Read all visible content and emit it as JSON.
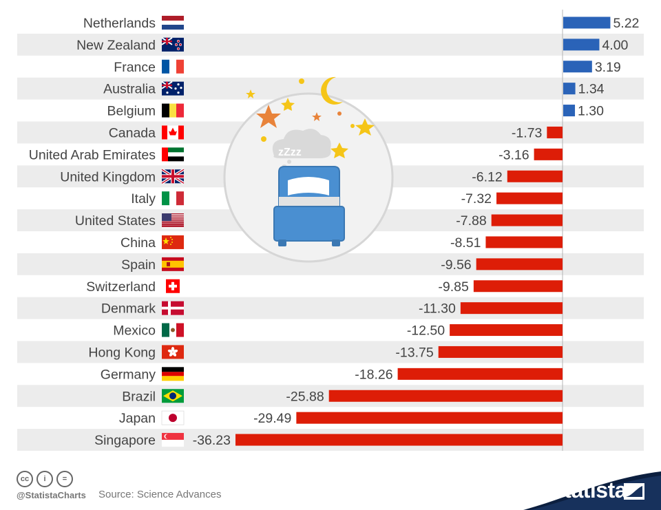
{
  "chart_data": {
    "type": "bar",
    "orientation": "horizontal",
    "title": "",
    "xlabel": "",
    "ylabel": "",
    "xlim": [
      -36.23,
      5.22
    ],
    "categories": [
      "Netherlands",
      "New Zealand",
      "France",
      "Australia",
      "Belgium",
      "Canada",
      "United Arab Emirates",
      "United Kingdom",
      "Italy",
      "United States",
      "China",
      "Spain",
      "Switzerland",
      "Denmark",
      "Mexico",
      "Hong Kong",
      "Germany",
      "Brazil",
      "Japan",
      "Singapore"
    ],
    "values": [
      5.22,
      4.0,
      3.19,
      1.34,
      1.3,
      -1.73,
      -3.16,
      -6.12,
      -7.32,
      -7.88,
      -8.51,
      -9.56,
      -9.85,
      -11.3,
      -12.5,
      -13.75,
      -18.26,
      -25.88,
      -29.49,
      -36.23
    ],
    "value_labels": [
      "5.22",
      "4.00",
      "3.19",
      "1.34",
      "1.30",
      "-1.73",
      "-3.16",
      "-6.12",
      "-7.32",
      "-7.88",
      "-8.51",
      "-9.56",
      "-9.85",
      "-11.30",
      "-12.50",
      "-13.75",
      "-18.26",
      "-25.88",
      "-29.49",
      "-36.23"
    ],
    "positive_color": "#2a63b8",
    "negative_color": "#dd1d07",
    "stripe_color": "#ececec"
  },
  "flags": [
    "netherlands-flag",
    "new-zealand-flag",
    "france-flag",
    "australia-flag",
    "belgium-flag",
    "canada-flag",
    "uae-flag",
    "uk-flag",
    "italy-flag",
    "usa-flag",
    "china-flag",
    "spain-flag",
    "switzerland-flag",
    "denmark-flag",
    "mexico-flag",
    "hong-kong-flag",
    "germany-flag",
    "brazil-flag",
    "japan-flag",
    "singapore-flag"
  ],
  "illustration": "sleeping-bed-icon",
  "footer": {
    "license_icons": [
      "cc-icon",
      "by-icon",
      "nd-icon"
    ],
    "license_labels": [
      "cc",
      "i",
      "="
    ],
    "handle": "@StatistaCharts",
    "source": "Source: Science Advances",
    "brand": "statista"
  }
}
